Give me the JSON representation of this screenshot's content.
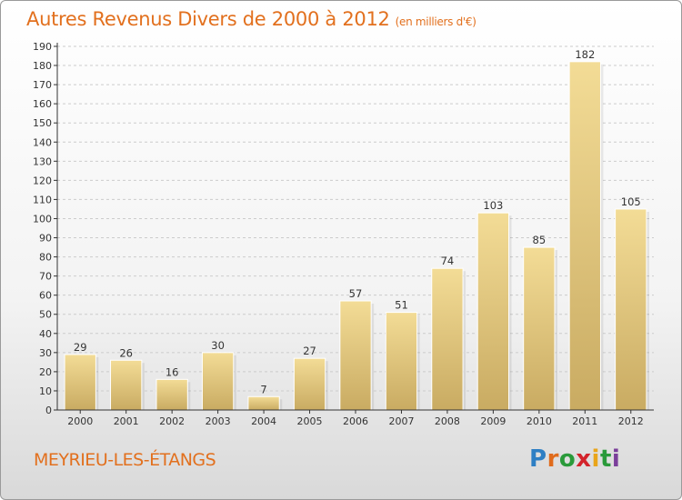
{
  "header": {
    "title": "Autres Revenus Divers de 2000 à 2012",
    "unit": "(en milliers d'€)"
  },
  "footer": {
    "town": "MEYRIEU-LES-ÉTANGS",
    "logo_letters": [
      "P",
      "r",
      "o",
      "x",
      "i",
      "t",
      "i"
    ],
    "logo_colors": [
      "#2e7fc4",
      "#e06b1c",
      "#2a9a3a",
      "#d3232b",
      "#e9a51a",
      "#2a9a3a",
      "#7a3f9a"
    ]
  },
  "chart_data": {
    "type": "bar",
    "title": "Autres Revenus Divers de 2000 à 2012",
    "xlabel": "",
    "ylabel": "",
    "categories": [
      "2000",
      "2001",
      "2002",
      "2003",
      "2004",
      "2005",
      "2006",
      "2007",
      "2008",
      "2009",
      "2010",
      "2011",
      "2012"
    ],
    "values": [
      29,
      26,
      16,
      30,
      7,
      27,
      57,
      51,
      74,
      103,
      85,
      182,
      105
    ],
    "ylim": [
      0,
      190
    ],
    "yticks": [
      0,
      10,
      20,
      30,
      40,
      50,
      60,
      70,
      80,
      90,
      100,
      110,
      120,
      130,
      140,
      150,
      160,
      170,
      180,
      190
    ],
    "grid": "horizontal dashed",
    "colors": {
      "bar_top": "#f3dc96",
      "bar_bottom": "#c9ab62",
      "axis": "#333333",
      "grid": "#cccccc"
    }
  }
}
